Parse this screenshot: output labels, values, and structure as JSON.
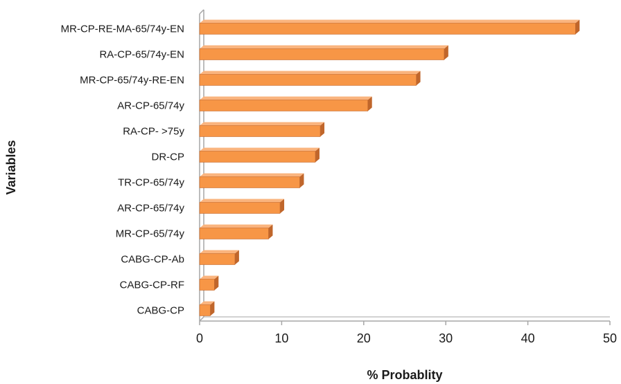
{
  "chart_data": {
    "type": "bar",
    "orientation": "horizontal",
    "categories": [
      "MR-CP-RE-MA-65/74y-EN",
      "RA-CP-65/74y-EN",
      "MR-CP-65/74y-RE-EN",
      "AR-CP-65/74y",
      "RA-CP- >75y",
      "DR-CP",
      "TR-CP-65/74y",
      "AR-CP-65/74y",
      "MR-CP-65/74y",
      "CABG-CP-Ab",
      "CABG-CP-RF",
      "CABG-CP"
    ],
    "values": [
      45.8,
      29.8,
      26.4,
      20.5,
      14.7,
      14.1,
      12.2,
      9.8,
      8.4,
      4.3,
      1.8,
      1.3
    ],
    "xlabel": "% Probablity",
    "ylabel": "Variables",
    "xlim": [
      0,
      50
    ],
    "xticks": [
      "0",
      "10",
      "20",
      "30",
      "40",
      "50"
    ],
    "grid": false,
    "legend": "none",
    "style": "3d",
    "colors": {
      "bar_front": "#F79646",
      "bar_top": "#FAB47E",
      "bar_side": "#C0662B",
      "bar_edge": "#C56A2E",
      "axis": "#A6A6A6"
    }
  }
}
